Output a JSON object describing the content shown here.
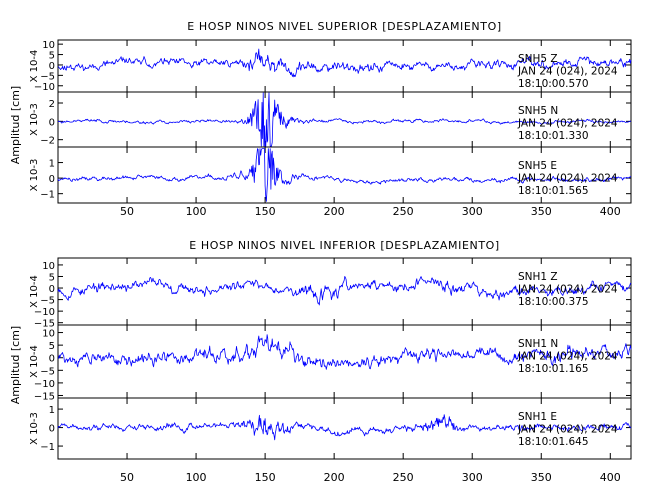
{
  "chart_data": [
    {
      "type": "line",
      "title": "E HOSP NINOS NIVEL SUPERIOR [DESPLAZAMIENTO]",
      "ylabel": "Amplitud [cm]",
      "xlim": [
        0,
        415
      ],
      "xticks": [
        50,
        100,
        150,
        200,
        250,
        300,
        350,
        400
      ],
      "line_color": "#0000ff",
      "traces": [
        {
          "scale_label": "X 10-4",
          "yticks": [
            -10,
            -5,
            0,
            5,
            10
          ],
          "ylim": [
            -13,
            12
          ],
          "info": [
            "SNH5   Z",
            "JAN 24 (024), 2024",
            "18:10:00.570"
          ],
          "peak": 11,
          "noise": 4.2,
          "burst": 0.5,
          "seed": 11,
          "events": [
            {
              "x": 150,
              "amp": 2.2,
              "w": 8
            },
            {
              "x": 190,
              "amp": 1.4,
              "w": 25
            }
          ]
        },
        {
          "scale_label": "X 10-3",
          "yticks": [
            -2,
            0,
            2
          ],
          "ylim": [
            -2.8,
            3.2
          ],
          "info": [
            "SNH5   N",
            "JAN 24 (024), 2024",
            "18:10:01.330"
          ],
          "peak": 2.8,
          "noise": 0.35,
          "burst": 1,
          "seed": 23,
          "events": [
            {
              "x": 150,
              "amp": 6.5,
              "w": 6
            },
            {
              "x": 156,
              "amp": 3,
              "w": 14
            }
          ]
        },
        {
          "scale_label": "X 10-3",
          "yticks": [
            -1,
            0,
            1
          ],
          "ylim": [
            -1.6,
            2.0
          ],
          "info": [
            "SNH5   E",
            "JAN 24 (024), 2024",
            "18:10:01.565"
          ],
          "peak": 1.9,
          "noise": 0.3,
          "burst": 1,
          "seed": 37,
          "events": [
            {
              "x": 150,
              "amp": 5,
              "w": 6
            },
            {
              "x": 154,
              "amp": 2.5,
              "w": 14
            }
          ]
        }
      ]
    },
    {
      "type": "line",
      "title": "E HOSP NINOS NIVEL INFERIOR [DESPLAZAMIENTO]",
      "ylabel": "Amplitud [cm]",
      "xlim": [
        0,
        415
      ],
      "xticks": [
        50,
        100,
        150,
        200,
        250,
        300,
        350,
        400
      ],
      "line_color": "#0000ff",
      "traces": [
        {
          "scale_label": "X 10-4",
          "yticks": [
            -15,
            -10,
            -5,
            0,
            5,
            10
          ],
          "ylim": [
            -16,
            13
          ],
          "info": [
            "SNH1   Z",
            "JAN 24 (024), 2024",
            "18:10:00.375"
          ],
          "peak": 12,
          "noise": 4.5,
          "burst": 0.4,
          "seed": 53,
          "events": [
            {
              "x": 192,
              "amp": 1.6,
              "w": 10
            },
            {
              "x": 280,
              "amp": 1.3,
              "w": 15
            }
          ]
        },
        {
          "scale_label": "X 10-4",
          "yticks": [
            -15,
            -10,
            -5,
            0,
            5,
            10
          ],
          "ylim": [
            -16,
            13
          ],
          "info": [
            "SNH1   N",
            "JAN 24 (024), 2024",
            "18:10:01.165"
          ],
          "peak": 12,
          "noise": 5,
          "burst": 0.4,
          "seed": 71,
          "events": [
            {
              "x": 150,
              "amp": 1.8,
              "w": 20
            },
            {
              "x": 365,
              "amp": 1.4,
              "w": 8
            }
          ]
        },
        {
          "scale_label": "X 10-3",
          "yticks": [
            -1,
            0,
            1
          ],
          "ylim": [
            -1.7,
            1.6
          ],
          "info": [
            "SNH1   E",
            "JAN 24 (024), 2024",
            "18:10:01.645"
          ],
          "peak": 1.4,
          "noise": 0.38,
          "burst": 0.8,
          "seed": 89,
          "events": [
            {
              "x": 150,
              "amp": 2.6,
              "w": 10
            },
            {
              "x": 275,
              "amp": 2.0,
              "w": 10
            }
          ]
        }
      ]
    }
  ]
}
